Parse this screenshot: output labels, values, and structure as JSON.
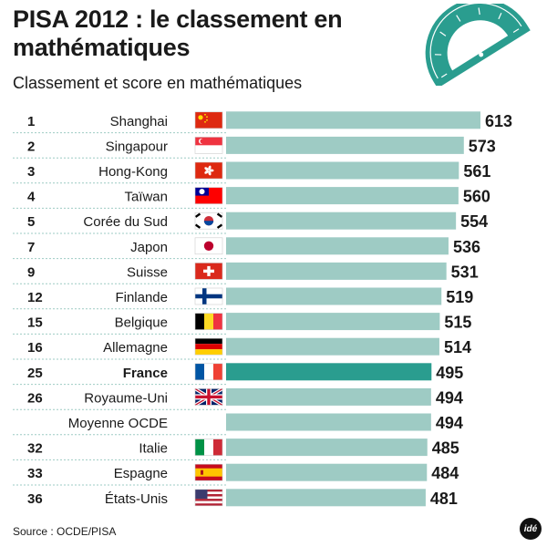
{
  "title": "PISA 2012 : le classement en mathématiques",
  "subtitle": "Classement et score en mathématiques",
  "source": "Source : OCDE/PISA",
  "logo_text": "idé",
  "colors": {
    "bar": "#9ecbc4",
    "bar_highlight": "#2a9d8f",
    "protractor": "#2a9d8f",
    "separator": "#9ecbc4"
  },
  "chart_data": {
    "type": "bar",
    "orientation": "horizontal",
    "title": "PISA 2012 : le classement en mathématiques",
    "subtitle": "Classement et score en mathématiques",
    "rows": [
      {
        "rank": "1",
        "label": "Shanghai",
        "value": 613,
        "flag": "china-flag"
      },
      {
        "rank": "2",
        "label": "Singapour",
        "value": 573,
        "flag": "singapore-flag"
      },
      {
        "rank": "3",
        "label": "Hong-Kong",
        "value": 561,
        "flag": "hong-kong-flag"
      },
      {
        "rank": "4",
        "label": "Taïwan",
        "value": 560,
        "flag": "taiwan-flag"
      },
      {
        "rank": "5",
        "label": "Corée du Sud",
        "value": 554,
        "flag": "south-korea-flag"
      },
      {
        "rank": "7",
        "label": "Japon",
        "value": 536,
        "flag": "japan-flag"
      },
      {
        "rank": "9",
        "label": "Suisse",
        "value": 531,
        "flag": "switzerland-flag"
      },
      {
        "rank": "12",
        "label": "Finlande",
        "value": 519,
        "flag": "finland-flag"
      },
      {
        "rank": "15",
        "label": "Belgique",
        "value": 515,
        "flag": "belgium-flag"
      },
      {
        "rank": "16",
        "label": "Allemagne",
        "value": 514,
        "flag": "germany-flag"
      },
      {
        "rank": "25",
        "label": "France",
        "value": 495,
        "flag": "france-flag",
        "highlight": true
      },
      {
        "rank": "26",
        "label": "Royaume-Uni",
        "value": 494,
        "flag": "uk-flag"
      },
      {
        "rank": "",
        "label": "Moyenne OCDE",
        "value": 494,
        "flag": ""
      },
      {
        "rank": "32",
        "label": "Italie",
        "value": 485,
        "flag": "italy-flag"
      },
      {
        "rank": "33",
        "label": "Espagne",
        "value": 484,
        "flag": "spain-flag"
      },
      {
        "rank": "36",
        "label": "États-Unis",
        "value": 481,
        "flag": "usa-flag"
      }
    ]
  }
}
